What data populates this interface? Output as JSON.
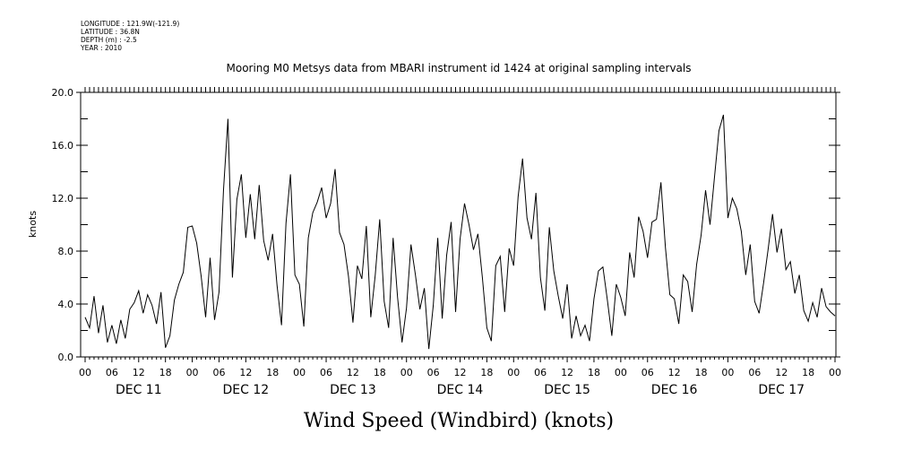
{
  "header": {
    "lines": [
      "LONGITUDE : 121.9W(-121.9)",
      "LATITUDE : 36.8N",
      "DEPTH (m) : -2.5",
      "YEAR : 2010"
    ]
  },
  "chart_data": {
    "type": "line",
    "title": "Mooring M0 Metsys data from MBARI instrument id 1424 at original sampling intervals",
    "xlabel": "Wind Speed (Windbird) (knots)",
    "ylabel": "knots",
    "ylim": [
      0,
      20
    ],
    "yticks": [
      "0.0",
      "4.0",
      "8.0",
      "12.0",
      "16.0",
      "20.0"
    ],
    "xlim_hours": [
      0,
      168
    ],
    "hour_ticks": [
      "00",
      "06",
      "12",
      "18",
      "00",
      "06",
      "12",
      "18",
      "00",
      "06",
      "12",
      "18",
      "00",
      "06",
      "12",
      "18",
      "00",
      "06",
      "12",
      "18",
      "00",
      "06",
      "12",
      "18",
      "00",
      "06",
      "12",
      "18",
      "00"
    ],
    "day_labels": [
      "DEC 11",
      "DEC 12",
      "DEC 13",
      "DEC 14",
      "DEC 15",
      "DEC 16",
      "DEC 17"
    ],
    "grid": false,
    "series": [
      {
        "values": [
          [
            0,
            3.0
          ],
          [
            1,
            2.2
          ],
          [
            2,
            4.6
          ],
          [
            3,
            1.8
          ],
          [
            4,
            3.9
          ],
          [
            5,
            1.1
          ],
          [
            6,
            2.4
          ],
          [
            7,
            1.0
          ],
          [
            8,
            2.8
          ],
          [
            9,
            1.4
          ],
          [
            10,
            3.6
          ],
          [
            11,
            4.1
          ],
          [
            12,
            5.0
          ],
          [
            13,
            3.3
          ],
          [
            14,
            4.7
          ],
          [
            15,
            3.9
          ],
          [
            16,
            2.5
          ],
          [
            17,
            4.9
          ],
          [
            18,
            0.7
          ],
          [
            19,
            1.6
          ],
          [
            20,
            4.3
          ],
          [
            21,
            5.5
          ],
          [
            22,
            6.4
          ],
          [
            23,
            9.8
          ],
          [
            24,
            9.9
          ],
          [
            25,
            8.6
          ],
          [
            26,
            6.1
          ],
          [
            27,
            3.0
          ],
          [
            28,
            7.5
          ],
          [
            29,
            2.8
          ],
          [
            30,
            4.9
          ],
          [
            31,
            12.6
          ],
          [
            32,
            18.0
          ],
          [
            33,
            6.0
          ],
          [
            34,
            11.9
          ],
          [
            35,
            13.8
          ],
          [
            36,
            9.0
          ],
          [
            37,
            12.3
          ],
          [
            38,
            8.9
          ],
          [
            39,
            13.0
          ],
          [
            40,
            8.8
          ],
          [
            41,
            7.3
          ],
          [
            42,
            9.3
          ],
          [
            43,
            5.4
          ],
          [
            44,
            2.4
          ],
          [
            45,
            10.1
          ],
          [
            46,
            13.8
          ],
          [
            47,
            6.2
          ],
          [
            48,
            5.5
          ],
          [
            49,
            2.3
          ],
          [
            50,
            9.0
          ],
          [
            51,
            10.9
          ],
          [
            52,
            11.7
          ],
          [
            53,
            12.8
          ],
          [
            54,
            10.5
          ],
          [
            55,
            11.6
          ],
          [
            56,
            14.2
          ],
          [
            57,
            9.4
          ],
          [
            58,
            8.5
          ],
          [
            59,
            6.1
          ],
          [
            60,
            2.6
          ],
          [
            61,
            6.9
          ],
          [
            62,
            5.9
          ],
          [
            63,
            9.9
          ],
          [
            64,
            3.0
          ],
          [
            65,
            6.2
          ],
          [
            66,
            10.4
          ],
          [
            67,
            4.2
          ],
          [
            68,
            2.2
          ],
          [
            69,
            9.0
          ],
          [
            70,
            4.5
          ],
          [
            71,
            1.1
          ],
          [
            72,
            3.7
          ],
          [
            73,
            8.5
          ],
          [
            74,
            6.2
          ],
          [
            75,
            3.6
          ],
          [
            76,
            5.2
          ],
          [
            77,
            0.6
          ],
          [
            78,
            3.9
          ],
          [
            79,
            9.0
          ],
          [
            80,
            2.9
          ],
          [
            81,
            7.7
          ],
          [
            82,
            10.2
          ],
          [
            83,
            3.4
          ],
          [
            84,
            8.9
          ],
          [
            85,
            11.6
          ],
          [
            86,
            10.0
          ],
          [
            87,
            8.1
          ],
          [
            88,
            9.3
          ],
          [
            89,
            6.0
          ],
          [
            90,
            2.2
          ],
          [
            91,
            1.2
          ],
          [
            92,
            6.9
          ],
          [
            93,
            7.6
          ],
          [
            94,
            3.4
          ],
          [
            95,
            8.2
          ],
          [
            96,
            6.9
          ],
          [
            97,
            12.1
          ],
          [
            98,
            15.0
          ],
          [
            99,
            10.5
          ],
          [
            100,
            8.9
          ],
          [
            101,
            12.4
          ],
          [
            102,
            6.0
          ],
          [
            103,
            3.5
          ],
          [
            104,
            9.8
          ],
          [
            105,
            6.5
          ],
          [
            106,
            4.6
          ],
          [
            107,
            2.9
          ],
          [
            108,
            5.5
          ],
          [
            109,
            1.4
          ],
          [
            110,
            3.1
          ],
          [
            111,
            1.6
          ],
          [
            112,
            2.4
          ],
          [
            113,
            1.2
          ],
          [
            114,
            4.4
          ],
          [
            115,
            6.5
          ],
          [
            116,
            6.8
          ],
          [
            117,
            4.3
          ],
          [
            118,
            1.6
          ],
          [
            119,
            5.5
          ],
          [
            120,
            4.5
          ],
          [
            121,
            3.1
          ],
          [
            122,
            7.9
          ],
          [
            123,
            6.0
          ],
          [
            124,
            10.6
          ],
          [
            125,
            9.5
          ],
          [
            126,
            7.5
          ],
          [
            127,
            10.2
          ],
          [
            128,
            10.4
          ],
          [
            129,
            13.2
          ],
          [
            130,
            8.3
          ],
          [
            131,
            4.7
          ],
          [
            132,
            4.4
          ],
          [
            133,
            2.5
          ],
          [
            134,
            6.2
          ],
          [
            135,
            5.7
          ],
          [
            136,
            3.4
          ],
          [
            137,
            7.0
          ],
          [
            138,
            9.2
          ],
          [
            139,
            12.6
          ],
          [
            140,
            10.0
          ],
          [
            141,
            13.6
          ],
          [
            142,
            17.1
          ],
          [
            143,
            18.3
          ],
          [
            144,
            10.5
          ],
          [
            145,
            12.0
          ],
          [
            146,
            11.2
          ],
          [
            147,
            9.5
          ],
          [
            148,
            6.2
          ],
          [
            149,
            8.5
          ],
          [
            150,
            4.2
          ],
          [
            151,
            3.3
          ],
          [
            152,
            5.6
          ],
          [
            153,
            8.1
          ],
          [
            154,
            10.8
          ],
          [
            155,
            7.9
          ],
          [
            156,
            9.7
          ],
          [
            157,
            6.6
          ],
          [
            158,
            7.2
          ],
          [
            159,
            4.8
          ],
          [
            160,
            6.2
          ],
          [
            161,
            3.5
          ],
          [
            162,
            2.7
          ],
          [
            163,
            4.1
          ],
          [
            164,
            3.0
          ],
          [
            165,
            5.2
          ],
          [
            166,
            3.8
          ],
          [
            167,
            3.4
          ],
          [
            168,
            3.1
          ]
        ]
      }
    ]
  }
}
